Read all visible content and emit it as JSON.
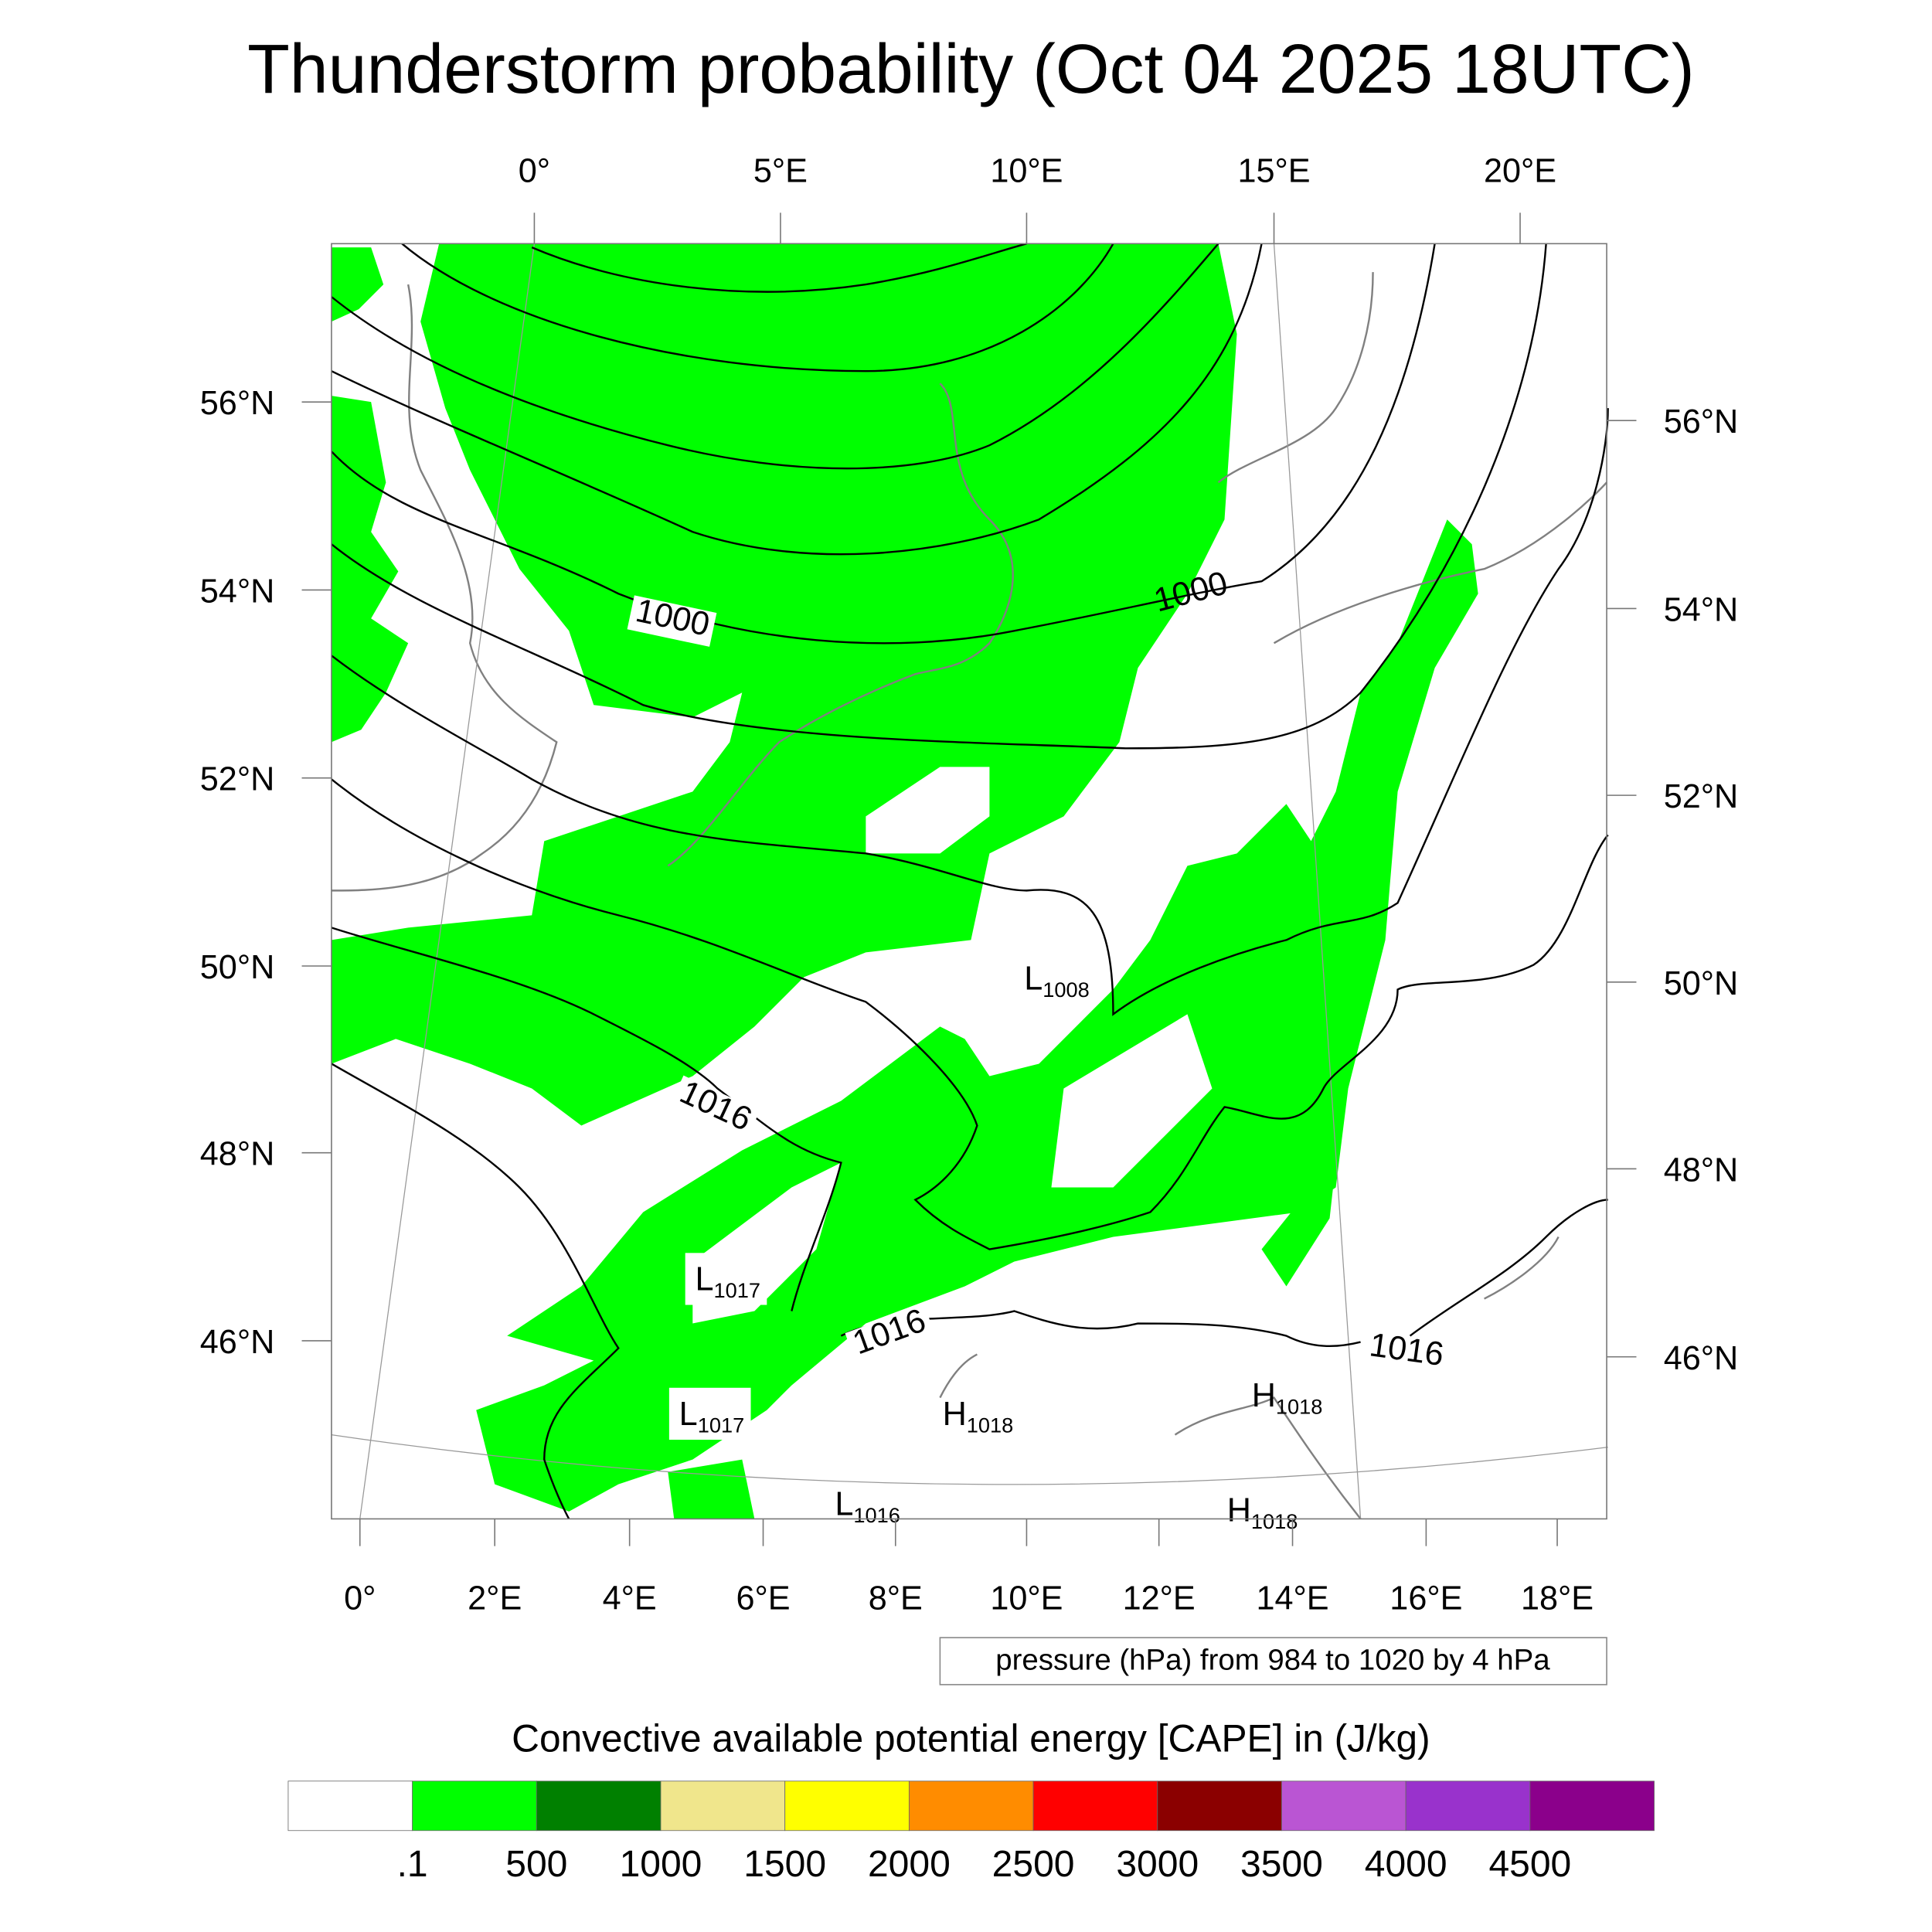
{
  "chart_data": {
    "type": "heatmap",
    "title": "Thunderstorm probability (Oct 04 2025 18UTC)",
    "top_lon_ticks": [
      "0°",
      "5°E",
      "10°E",
      "15°E",
      "20°E"
    ],
    "bottom_lon_ticks": [
      "0°",
      "2°E",
      "4°E",
      "6°E",
      "8°E",
      "10°E",
      "12°E",
      "14°E",
      "16°E",
      "18°E"
    ],
    "left_lat_ticks": [
      "56°N",
      "54°N",
      "52°N",
      "50°N",
      "48°N",
      "46°N"
    ],
    "right_lat_ticks": [
      "56°N",
      "54°N",
      "52°N",
      "50°N",
      "48°N",
      "46°N"
    ],
    "contour_info": "pressure (hPa) from 984 to 1020 by 4 hPa",
    "contour_labels": [
      "1000",
      "1000",
      "1016",
      "1016",
      "1016"
    ],
    "pressure_centers": [
      {
        "type": "L",
        "value": "1008"
      },
      {
        "type": "L",
        "value": "1017"
      },
      {
        "type": "L",
        "value": "1017"
      },
      {
        "type": "L",
        "value": "1016"
      },
      {
        "type": "H",
        "value": "1018"
      },
      {
        "type": "H",
        "value": "1018"
      },
      {
        "type": "H",
        "value": "1018"
      }
    ],
    "colorbar": {
      "title": "Convective available potential energy [CAPE] in (J/kg)",
      "labels": [
        ".1",
        "500",
        "1000",
        "1500",
        "2000",
        "2500",
        "3000",
        "3500",
        "4000",
        "4500"
      ],
      "colors": [
        "#ffffff",
        "#00ff00",
        "#008000",
        "#f0e68c",
        "#ffff00",
        "#ff8c00",
        "#ff0000",
        "#8b0000",
        "#ba55d3",
        "#9932cc",
        "#8b008b"
      ]
    },
    "field_color": "#00ff00",
    "region_max_cape_class": ".1-500"
  }
}
